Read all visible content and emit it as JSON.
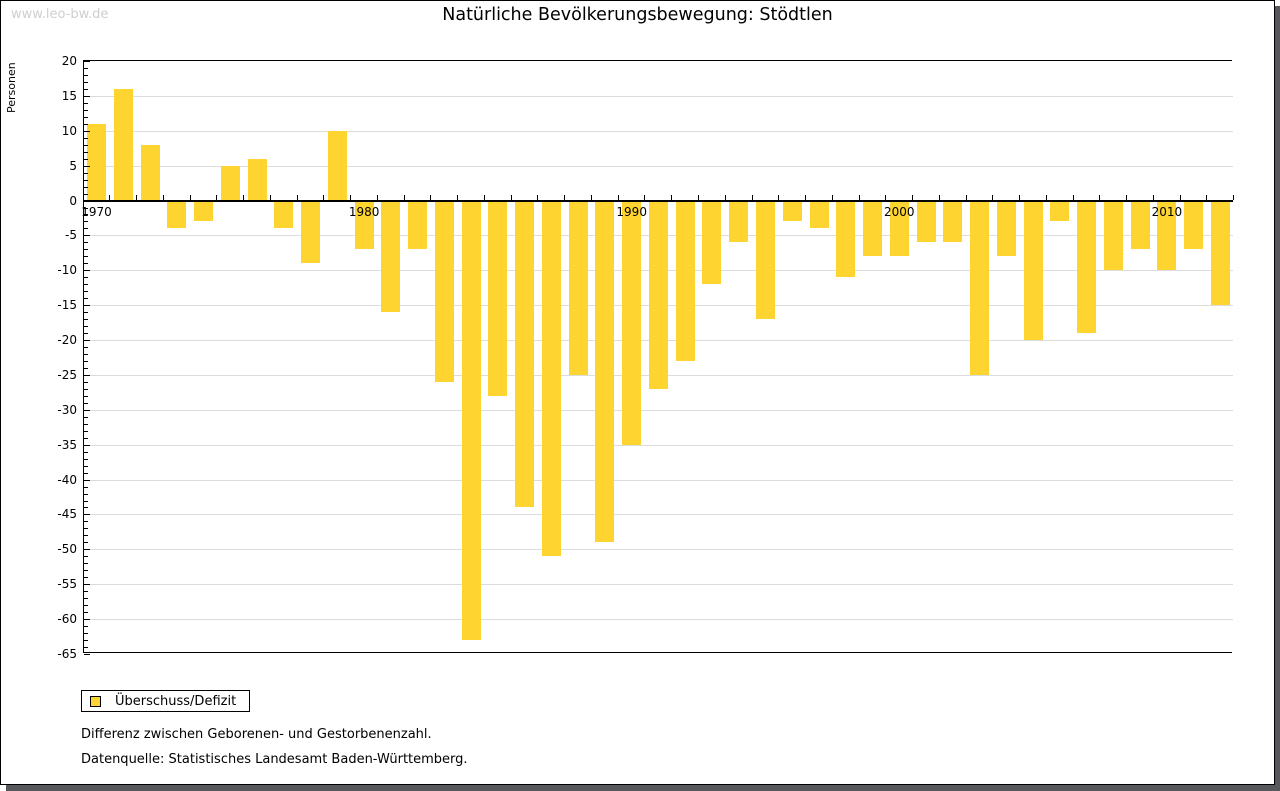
{
  "watermark": "www.leo-bw.de",
  "title": "Natürliche Bevölkerungsbewegung: Stödtlen",
  "legend": {
    "label": "Überschuss/Defizit"
  },
  "notes": {
    "line1": "Differenz zwischen Geborenen- und Gestorbenenzahl.",
    "line2": "Datenquelle: Statistisches Landesamt Baden-Württemberg."
  },
  "colors": {
    "bar": "#fdd430",
    "grid": "#dcdcdc",
    "axis": "#000000",
    "shadow": "#57585c",
    "watermark": "#cfcfcf"
  },
  "chart_data": {
    "type": "bar",
    "title": "Natürliche Bevölkerungsbewegung: Stödtlen",
    "xlabel": "",
    "ylabel": "Personen",
    "ylim": [
      -65,
      20
    ],
    "ytick_step": 5,
    "grid": true,
    "legend_position": "bottom-left",
    "series_name": "Überschuss/Defizit",
    "decade_tick_labels": [
      "1970",
      "1980",
      "1990",
      "2000",
      "2010"
    ],
    "categories": [
      1970,
      1971,
      1972,
      1973,
      1974,
      1975,
      1976,
      1977,
      1978,
      1979,
      1980,
      1981,
      1982,
      1983,
      1984,
      1985,
      1986,
      1987,
      1988,
      1989,
      1990,
      1991,
      1992,
      1993,
      1994,
      1995,
      1996,
      1997,
      1998,
      1999,
      2000,
      2001,
      2002,
      2003,
      2004,
      2005,
      2006,
      2007,
      2008,
      2009,
      2010,
      2011,
      2012
    ],
    "values": [
      11,
      16,
      8,
      -4,
      -3,
      5,
      6,
      -4,
      -9,
      10,
      -7,
      -16,
      -7,
      -26,
      -63,
      -28,
      -44,
      -51,
      -25,
      -49,
      -35,
      -27,
      -23,
      -12,
      -6,
      -17,
      -3,
      -4,
      -11,
      -8,
      -8,
      -6,
      -6,
      -25,
      -8,
      -20,
      -3,
      -19,
      -10,
      -7,
      -10,
      -7,
      -15
    ]
  }
}
